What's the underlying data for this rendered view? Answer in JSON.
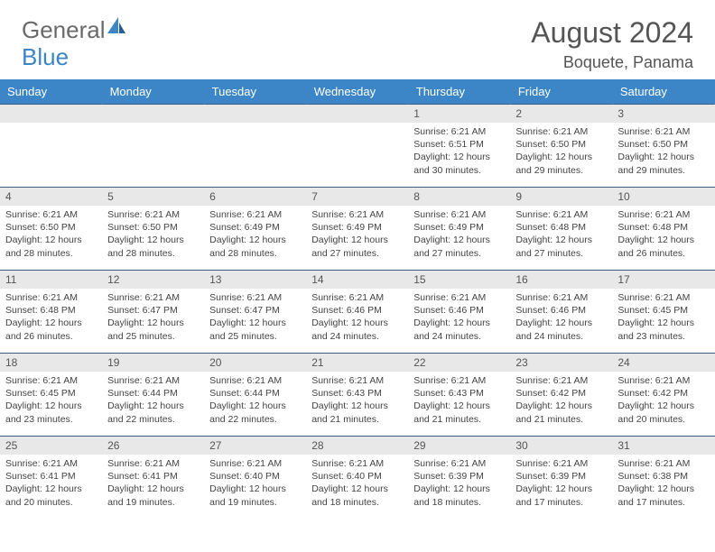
{
  "brand": {
    "part1": "General",
    "part2": "Blue"
  },
  "title": "August 2024",
  "location": "Boquete, Panama",
  "colors": {
    "header_bg": "#3c86c8",
    "header_text": "#ffffff",
    "daynum_bg": "#e8e8e8",
    "daynum_text": "#555555",
    "body_text": "#444444",
    "rule": "#3c5f86",
    "logo_gray": "#6a6a6a",
    "logo_blue": "#3c86c8"
  },
  "weekdays": [
    "Sunday",
    "Monday",
    "Tuesday",
    "Wednesday",
    "Thursday",
    "Friday",
    "Saturday"
  ],
  "first_day_index": 4,
  "days": [
    {
      "n": 1,
      "sunrise": "6:21 AM",
      "sunset": "6:51 PM",
      "dl": "12 hours and 30 minutes."
    },
    {
      "n": 2,
      "sunrise": "6:21 AM",
      "sunset": "6:50 PM",
      "dl": "12 hours and 29 minutes."
    },
    {
      "n": 3,
      "sunrise": "6:21 AM",
      "sunset": "6:50 PM",
      "dl": "12 hours and 29 minutes."
    },
    {
      "n": 4,
      "sunrise": "6:21 AM",
      "sunset": "6:50 PM",
      "dl": "12 hours and 28 minutes."
    },
    {
      "n": 5,
      "sunrise": "6:21 AM",
      "sunset": "6:50 PM",
      "dl": "12 hours and 28 minutes."
    },
    {
      "n": 6,
      "sunrise": "6:21 AM",
      "sunset": "6:49 PM",
      "dl": "12 hours and 28 minutes."
    },
    {
      "n": 7,
      "sunrise": "6:21 AM",
      "sunset": "6:49 PM",
      "dl": "12 hours and 27 minutes."
    },
    {
      "n": 8,
      "sunrise": "6:21 AM",
      "sunset": "6:49 PM",
      "dl": "12 hours and 27 minutes."
    },
    {
      "n": 9,
      "sunrise": "6:21 AM",
      "sunset": "6:48 PM",
      "dl": "12 hours and 27 minutes."
    },
    {
      "n": 10,
      "sunrise": "6:21 AM",
      "sunset": "6:48 PM",
      "dl": "12 hours and 26 minutes."
    },
    {
      "n": 11,
      "sunrise": "6:21 AM",
      "sunset": "6:48 PM",
      "dl": "12 hours and 26 minutes."
    },
    {
      "n": 12,
      "sunrise": "6:21 AM",
      "sunset": "6:47 PM",
      "dl": "12 hours and 25 minutes."
    },
    {
      "n": 13,
      "sunrise": "6:21 AM",
      "sunset": "6:47 PM",
      "dl": "12 hours and 25 minutes."
    },
    {
      "n": 14,
      "sunrise": "6:21 AM",
      "sunset": "6:46 PM",
      "dl": "12 hours and 24 minutes."
    },
    {
      "n": 15,
      "sunrise": "6:21 AM",
      "sunset": "6:46 PM",
      "dl": "12 hours and 24 minutes."
    },
    {
      "n": 16,
      "sunrise": "6:21 AM",
      "sunset": "6:46 PM",
      "dl": "12 hours and 24 minutes."
    },
    {
      "n": 17,
      "sunrise": "6:21 AM",
      "sunset": "6:45 PM",
      "dl": "12 hours and 23 minutes."
    },
    {
      "n": 18,
      "sunrise": "6:21 AM",
      "sunset": "6:45 PM",
      "dl": "12 hours and 23 minutes."
    },
    {
      "n": 19,
      "sunrise": "6:21 AM",
      "sunset": "6:44 PM",
      "dl": "12 hours and 22 minutes."
    },
    {
      "n": 20,
      "sunrise": "6:21 AM",
      "sunset": "6:44 PM",
      "dl": "12 hours and 22 minutes."
    },
    {
      "n": 21,
      "sunrise": "6:21 AM",
      "sunset": "6:43 PM",
      "dl": "12 hours and 21 minutes."
    },
    {
      "n": 22,
      "sunrise": "6:21 AM",
      "sunset": "6:43 PM",
      "dl": "12 hours and 21 minutes."
    },
    {
      "n": 23,
      "sunrise": "6:21 AM",
      "sunset": "6:42 PM",
      "dl": "12 hours and 21 minutes."
    },
    {
      "n": 24,
      "sunrise": "6:21 AM",
      "sunset": "6:42 PM",
      "dl": "12 hours and 20 minutes."
    },
    {
      "n": 25,
      "sunrise": "6:21 AM",
      "sunset": "6:41 PM",
      "dl": "12 hours and 20 minutes."
    },
    {
      "n": 26,
      "sunrise": "6:21 AM",
      "sunset": "6:41 PM",
      "dl": "12 hours and 19 minutes."
    },
    {
      "n": 27,
      "sunrise": "6:21 AM",
      "sunset": "6:40 PM",
      "dl": "12 hours and 19 minutes."
    },
    {
      "n": 28,
      "sunrise": "6:21 AM",
      "sunset": "6:40 PM",
      "dl": "12 hours and 18 minutes."
    },
    {
      "n": 29,
      "sunrise": "6:21 AM",
      "sunset": "6:39 PM",
      "dl": "12 hours and 18 minutes."
    },
    {
      "n": 30,
      "sunrise": "6:21 AM",
      "sunset": "6:39 PM",
      "dl": "12 hours and 17 minutes."
    },
    {
      "n": 31,
      "sunrise": "6:21 AM",
      "sunset": "6:38 PM",
      "dl": "12 hours and 17 minutes."
    }
  ],
  "labels": {
    "sunrise": "Sunrise:",
    "sunset": "Sunset:",
    "daylight": "Daylight:"
  }
}
